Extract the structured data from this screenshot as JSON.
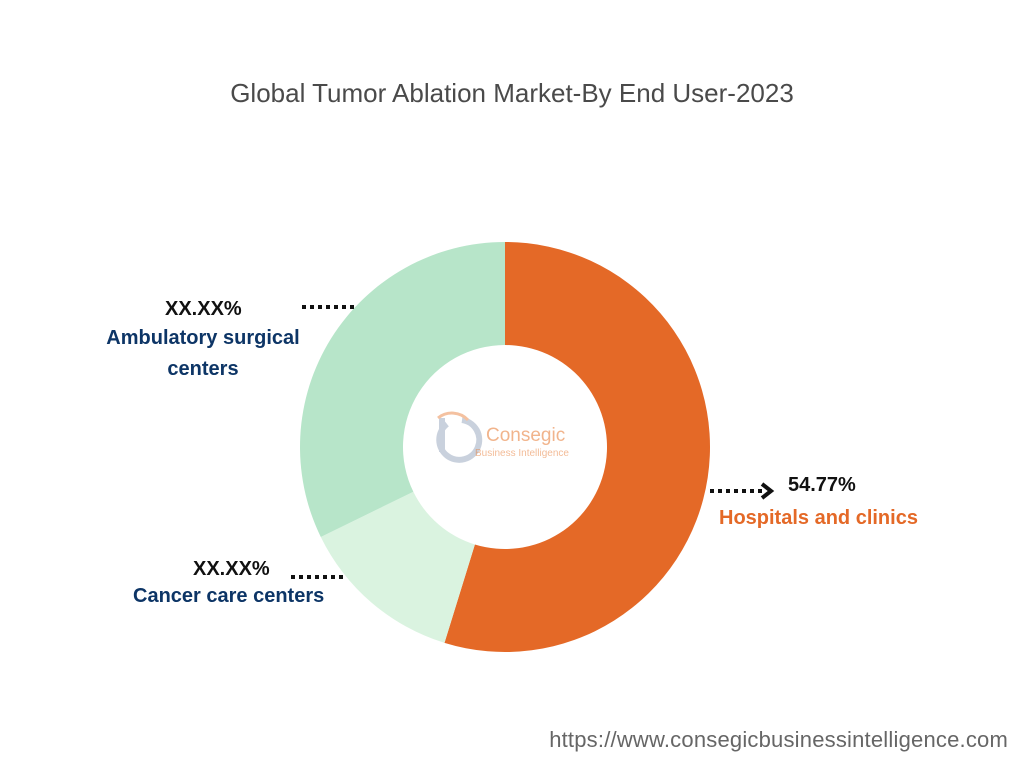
{
  "chart_data": {
    "type": "pie",
    "variant": "donut",
    "title": "Global Tumor Ablation Market-By End User-2023",
    "slices": [
      {
        "label": "Hospitals and clinics",
        "value": 54.77,
        "value_label": "54.77%",
        "color": "#e46927",
        "label_color": "#e46927"
      },
      {
        "label": "Cancer care centers",
        "value": 13.0,
        "value_label": "XX.XX%",
        "color": "#daf3e0",
        "label_color": "#0d3566"
      },
      {
        "label": "Ambulatory surgical centers",
        "value": 32.23,
        "value_label": "XX.XX%",
        "color": "#b7e5c9",
        "label_color": "#0d3566"
      }
    ],
    "start_angle_deg": 0,
    "direction": "clockwise",
    "legend": "none"
  },
  "labels": {
    "ambulatory_line1": "Ambulatory surgical",
    "ambulatory_line2": "centers"
  },
  "logo": {
    "brand": "Consegic",
    "tagline": "Business Intelligence"
  },
  "source": "https://www.consegicbusinessintelligence.com"
}
